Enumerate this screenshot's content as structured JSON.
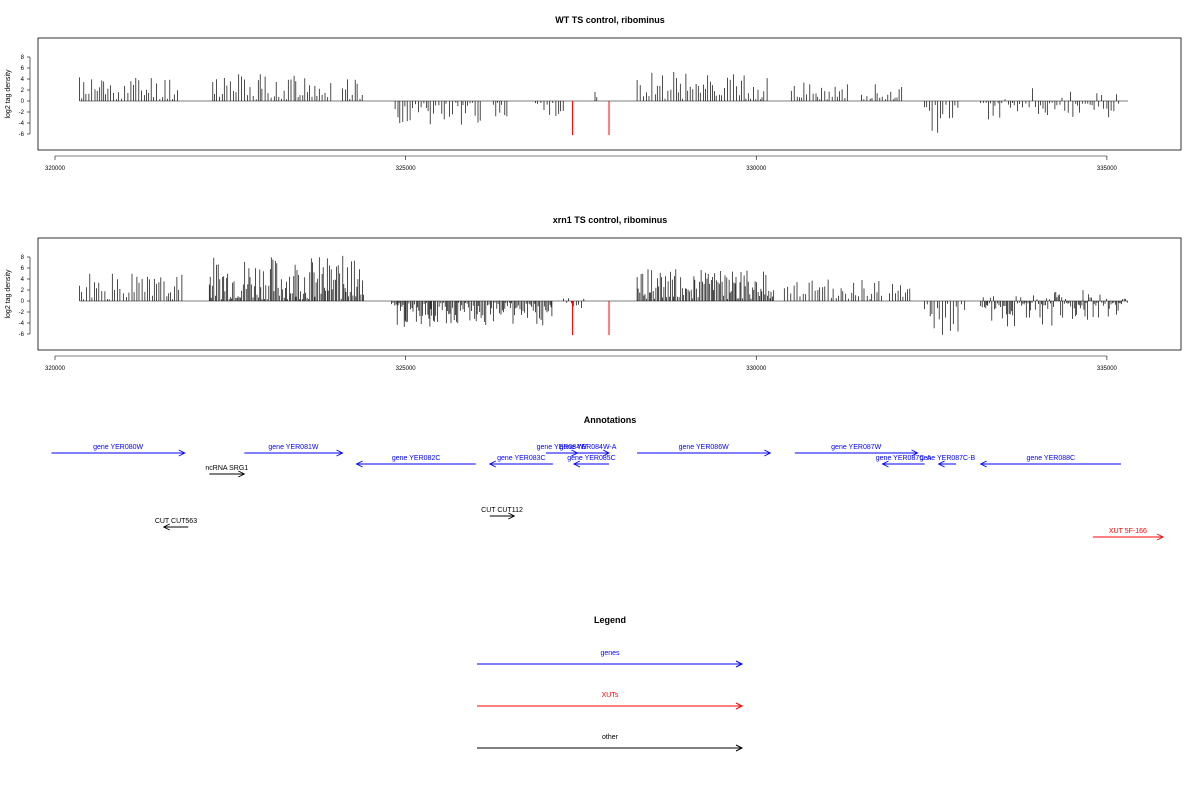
{
  "chart_data": [
    {
      "type": "bar",
      "title": "WT TS control, ribominus",
      "ylabel": "log2 tag density",
      "xlabel": "",
      "xlim": [
        320000,
        335800
      ],
      "ylim": [
        -6.5,
        8.5
      ],
      "x_ticks": [
        "320000",
        "325000",
        "330000",
        "335000"
      ],
      "y_ticks": [
        "8",
        "6",
        "4",
        "2",
        "0",
        "-2",
        "-4",
        "-6"
      ],
      "series": [
        {
          "color": "#000000",
          "regions": [
            {
              "start": 320350,
              "end": 321780,
              "min": 0,
              "max": 4.6,
              "seed": 11
            },
            {
              "start": 322250,
              "end": 323950,
              "min": 0,
              "max": 4.8,
              "seed": 12
            },
            {
              "start": 324100,
              "end": 324400,
              "min": 0,
              "max": 4.3,
              "seed": 13
            },
            {
              "start": 324850,
              "end": 326100,
              "min": -4.0,
              "max": 0,
              "seed": 14
            },
            {
              "start": 326250,
              "end": 326450,
              "min": -2.6,
              "max": 0,
              "seed": 15
            },
            {
              "start": 326850,
              "end": 327250,
              "min": -2.5,
              "max": 0,
              "seed": 16
            },
            {
              "start": 327700,
              "end": 327750,
              "min": 0,
              "max": 1.5,
              "seed": 17
            },
            {
              "start": 328300,
              "end": 330200,
              "min": 0,
              "max": 5.2,
              "seed": 18
            },
            {
              "start": 330500,
              "end": 331300,
              "min": 0,
              "max": 3.2,
              "seed": 19
            },
            {
              "start": 331500,
              "end": 332100,
              "min": 0,
              "max": 2.8,
              "seed": 20
            },
            {
              "start": 332400,
              "end": 332900,
              "min": -5.5,
              "max": 0,
              "seed": 21
            },
            {
              "start": 333200,
              "end": 335200,
              "min": -3.8,
              "max": 2.6,
              "seed": 22
            }
          ]
        },
        {
          "color": "#ff0000",
          "lines": [
            {
              "x": 327380,
              "y": -6.2
            },
            {
              "x": 327900,
              "y": -6.2
            }
          ]
        }
      ]
    },
    {
      "type": "bar",
      "title": "xrn1 TS control, ribominus",
      "ylabel": "log2 tag density",
      "xlabel": "",
      "xlim": [
        320000,
        335800
      ],
      "ylim": [
        -6.5,
        8.5
      ],
      "x_ticks": [
        "320000",
        "325000",
        "330000",
        "335000"
      ],
      "y_ticks": [
        "8",
        "6",
        "4",
        "2",
        "0",
        "-2",
        "-4",
        "-6"
      ],
      "series": [
        {
          "color": "#000000",
          "regions": [
            {
              "start": 320350,
              "end": 321850,
              "min": 0,
              "max": 4.8,
              "seed": 31
            },
            {
              "start": 322200,
              "end": 324150,
              "min": 0,
              "max": 8.0,
              "seed": 32,
              "dense": true
            },
            {
              "start": 324150,
              "end": 324400,
              "min": 0,
              "max": 7.5,
              "seed": 33,
              "dense": true
            },
            {
              "start": 324800,
              "end": 327100,
              "min": -4.5,
              "max": 0,
              "seed": 34,
              "dense": true
            },
            {
              "start": 327250,
              "end": 327550,
              "min": -2.0,
              "max": 1.4,
              "seed": 35
            },
            {
              "start": 328300,
              "end": 330250,
              "min": 0,
              "max": 5.5,
              "seed": 36,
              "dense": true
            },
            {
              "start": 330400,
              "end": 331800,
              "min": 0,
              "max": 3.8,
              "seed": 37
            },
            {
              "start": 331900,
              "end": 332200,
              "min": 0,
              "max": 3.2,
              "seed": 38
            },
            {
              "start": 332400,
              "end": 333000,
              "min": -6.0,
              "max": 0,
              "seed": 39
            },
            {
              "start": 333200,
              "end": 335300,
              "min": -4.8,
              "max": 2.4,
              "seed": 40,
              "dense": true
            }
          ]
        },
        {
          "color": "#ff0000",
          "lines": [
            {
              "x": 327380,
              "y": -6.2
            },
            {
              "x": 327900,
              "y": -6.2
            }
          ]
        }
      ]
    }
  ],
  "annotations": {
    "title": "Annotations",
    "xlim": [
      320000,
      335800
    ],
    "features": [
      {
        "label": "gene YER080W",
        "start": 319950,
        "end": 321850,
        "row": 0,
        "dir": "right",
        "color": "#0000ff"
      },
      {
        "label": "gene YER081W",
        "start": 322700,
        "end": 324100,
        "row": 0,
        "dir": "right",
        "color": "#0000ff"
      },
      {
        "label": "gene YER082C",
        "start": 324300,
        "end": 326000,
        "row": 1,
        "dir": "left",
        "color": "#0000ff"
      },
      {
        "label": "gene YER083C",
        "start": 326200,
        "end": 327100,
        "row": 1,
        "dir": "left",
        "color": "#0000ff"
      },
      {
        "label": "gene YER084W",
        "start": 327000,
        "end": 327450,
        "row": 0,
        "dir": "right",
        "color": "#0000ff"
      },
      {
        "label": "gene YER084W-A",
        "start": 327300,
        "end": 327900,
        "row": 0,
        "dir": "right",
        "color": "#0000ff"
      },
      {
        "label": "gene YER085C",
        "start": 327400,
        "end": 327900,
        "row": 1,
        "dir": "left",
        "color": "#0000ff"
      },
      {
        "label": "gene YER086W",
        "start": 328300,
        "end": 330200,
        "row": 0,
        "dir": "right",
        "color": "#0000ff"
      },
      {
        "label": "gene YER087W",
        "start": 330550,
        "end": 332300,
        "row": 0,
        "dir": "right",
        "color": "#0000ff"
      },
      {
        "label": "gene YER087C-A",
        "start": 331800,
        "end": 332400,
        "row": 1,
        "dir": "left",
        "color": "#0000ff"
      },
      {
        "label": "gene YER087C-B",
        "start": 332600,
        "end": 332850,
        "row": 1,
        "dir": "left",
        "color": "#0000ff"
      },
      {
        "label": "gene YER088C",
        "start": 333200,
        "end": 335200,
        "row": 1,
        "dir": "left",
        "color": "#0000ff"
      },
      {
        "label": "ncRNA SRG1",
        "start": 322200,
        "end": 322700,
        "row": 2,
        "dir": "right",
        "color": "#000000"
      },
      {
        "label": "CUT CUT563",
        "start": 321550,
        "end": 321900,
        "row": 5,
        "dir": "left",
        "color": "#000000"
      },
      {
        "label": "CUT CUT112",
        "start": 326200,
        "end": 326550,
        "row": 4,
        "dir": "right",
        "color": "#000000"
      },
      {
        "label": "XUT 5F-166",
        "start": 334800,
        "end": 335800,
        "row": 6,
        "dir": "right",
        "color": "#ff0000"
      }
    ]
  },
  "legend": {
    "title": "Legend",
    "entries": [
      {
        "label": "genes",
        "color": "#0000ff"
      },
      {
        "label": "XUTs",
        "color": "#ff0000"
      },
      {
        "label": "other",
        "color": "#000000"
      }
    ]
  }
}
